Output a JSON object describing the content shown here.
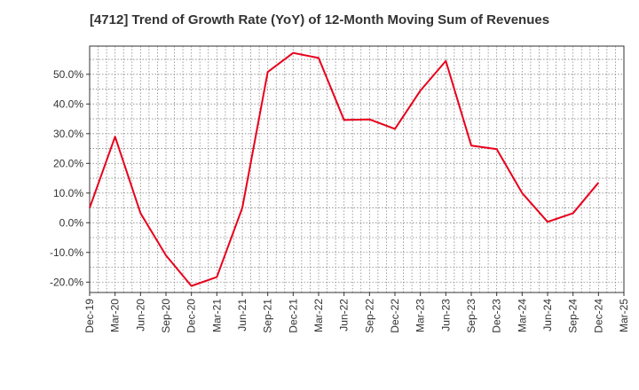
{
  "chart_data": {
    "type": "line",
    "title": "[4712]  Trend of Growth Rate (YoY) of 12-Month Moving Sum of Revenues",
    "xlabel": "",
    "ylabel": "",
    "x": [
      "Dec-19",
      "Mar-20",
      "Jun-20",
      "Sep-20",
      "Dec-20",
      "Mar-21",
      "Jun-21",
      "Sep-21",
      "Dec-21",
      "Mar-22",
      "Jun-22",
      "Sep-22",
      "Dec-22",
      "Mar-23",
      "Jun-23",
      "Sep-23",
      "Dec-23",
      "Mar-24",
      "Jun-24",
      "Sep-24",
      "Dec-24",
      "Mar-25"
    ],
    "series": [
      {
        "values": [
          5.0,
          29.0,
          3.2,
          -11.0,
          -21.3,
          -18.3,
          5.0,
          50.8,
          57.2,
          55.5,
          34.6,
          34.8,
          31.6,
          44.5,
          54.5,
          26.0,
          24.8,
          10.0,
          0.3,
          3.2,
          13.5,
          null
        ]
      }
    ],
    "ylim": [
      -23.5,
      59.5
    ],
    "yticks": [
      -20,
      -10,
      0,
      10,
      20,
      30,
      40,
      50
    ],
    "ytick_labels": [
      "-20.0%",
      "-10.0%",
      "0.0%",
      "10.0%",
      "20.0%",
      "30.0%",
      "40.0%",
      "50.0%"
    ],
    "grid": true,
    "line_color": "#e8001c"
  }
}
